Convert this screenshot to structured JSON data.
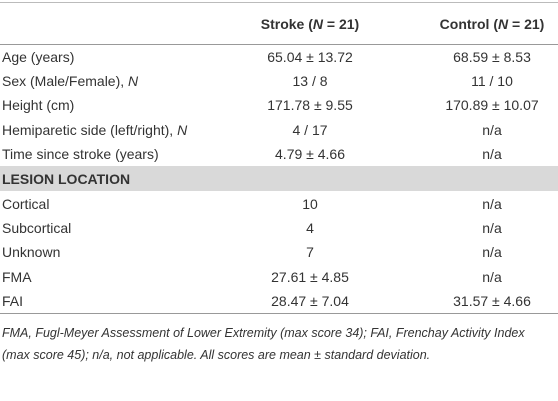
{
  "table": {
    "header": [
      [
        "Stroke (",
        "N",
        " = 21)"
      ],
      [
        "Control (",
        "N",
        " = 21)"
      ]
    ],
    "rows": [
      [
        [
          "Age (years)"
        ],
        "65.04 ± 13.72",
        "68.59 ± 8.53"
      ],
      [
        [
          "Sex (Male/Female), ",
          "N"
        ],
        "13 / 8",
        "11 / 10"
      ],
      [
        [
          "Height (cm)"
        ],
        "171.78 ± 9.55",
        "170.89 ± 10.07"
      ],
      [
        [
          "Hemiparetic side (left/right), ",
          "N"
        ],
        "4 / 17",
        "n/a"
      ],
      [
        [
          "Time since stroke (years)"
        ],
        "4.79 ± 4.66",
        "n/a"
      ]
    ],
    "section": "LESION LOCATION",
    "section_rows": [
      [
        "Cortical",
        "10",
        "n/a"
      ],
      [
        "Subcortical",
        "4",
        "n/a"
      ],
      [
        "Unknown",
        "7",
        "n/a"
      ],
      [
        "FMA",
        "27.61 ± 4.85",
        "n/a"
      ],
      [
        "FAI",
        "28.47 ± 7.04",
        "31.57 ± 4.66"
      ]
    ],
    "footnote": "FMA, Fugl-Meyer Assessment of Lower Extremity (max score 34); FAI, Frenchay Activity Index (max score 45); n/a, not applicable. All scores are mean ± standard deviation."
  }
}
